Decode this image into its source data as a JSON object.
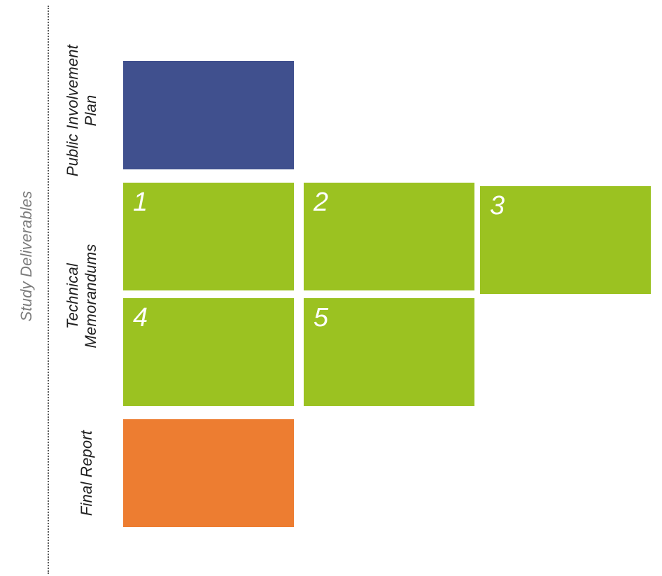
{
  "diagram": {
    "main_label": "Study Deliverables",
    "rows": {
      "public_involvement_plan": {
        "label": "Public Involvement\nPlan",
        "color": "#40508e"
      },
      "technical_memorandums": {
        "label": "Technical\nMemorandums",
        "color": "#9bc221",
        "items": [
          "1",
          "2",
          "3",
          "4",
          "5"
        ]
      },
      "final_report": {
        "label": "Final Report",
        "color": "#ed7d31"
      }
    }
  }
}
